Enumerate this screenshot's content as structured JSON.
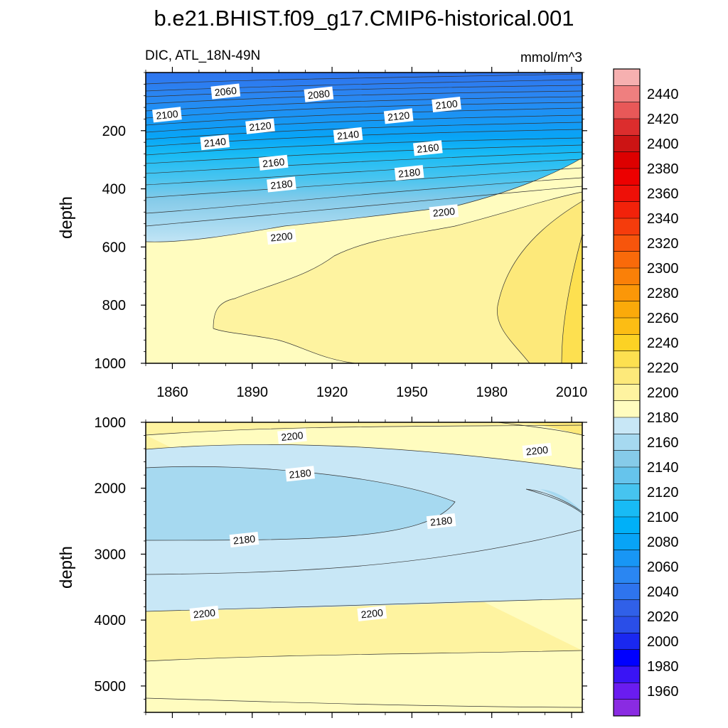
{
  "chart_data": {
    "type": "contour",
    "title": "b.e21.BHIST.f09_g17.CMIP6-historical.001",
    "variable_label": "DIC, ATL_18N-49N",
    "units": "mmol/m^3",
    "top_panel": {
      "ylabel": "depth",
      "ylim": [
        0,
        1000
      ],
      "y_inverted": true,
      "yticks": [
        "200",
        "400",
        "600",
        "800",
        "1000"
      ],
      "xlim": [
        1850,
        2014
      ],
      "xticks": [
        "1860",
        "1890",
        "1920",
        "1950",
        "1980",
        "2010"
      ],
      "contour_labels": [
        {
          "text": "2060",
          "year": 1880,
          "depth": 65
        },
        {
          "text": "2080",
          "year": 1915,
          "depth": 75
        },
        {
          "text": "2100",
          "year": 1858,
          "depth": 145
        },
        {
          "text": "2100",
          "year": 1963,
          "depth": 110
        },
        {
          "text": "2120",
          "year": 1893,
          "depth": 185
        },
        {
          "text": "2120",
          "year": 1945,
          "depth": 150
        },
        {
          "text": "2140",
          "year": 1876,
          "depth": 240
        },
        {
          "text": "2140",
          "year": 1926,
          "depth": 215
        },
        {
          "text": "2160",
          "year": 1898,
          "depth": 310
        },
        {
          "text": "2160",
          "year": 1956,
          "depth": 260
        },
        {
          "text": "2180",
          "year": 1901,
          "depth": 385
        },
        {
          "text": "2180",
          "year": 1949,
          "depth": 345
        },
        {
          "text": "2200",
          "year": 1901,
          "depth": 565
        },
        {
          "text": "2200",
          "year": 1962,
          "depth": 480
        }
      ]
    },
    "bottom_panel": {
      "ylabel": "depth",
      "ylim": [
        1000,
        5400
      ],
      "y_inverted": true,
      "yticks": [
        "1000",
        "2000",
        "3000",
        "4000",
        "5000"
      ],
      "xlim": [
        1850,
        2014
      ],
      "contour_labels": [
        {
          "text": "2200",
          "year": 1905,
          "depth": 1210
        },
        {
          "text": "2200",
          "year": 1997,
          "depth": 1430
        },
        {
          "text": "2180",
          "year": 1908,
          "depth": 1780
        },
        {
          "text": "2180",
          "year": 1961,
          "depth": 2500
        },
        {
          "text": "2180",
          "year": 1887,
          "depth": 2780
        },
        {
          "text": "2200",
          "year": 1872,
          "depth": 3900
        },
        {
          "text": "2200",
          "year": 1935,
          "depth": 3900
        }
      ]
    },
    "colorbar": {
      "levels": [
        "1960",
        "1980",
        "2000",
        "2020",
        "2040",
        "2060",
        "2080",
        "2100",
        "2120",
        "2140",
        "2160",
        "2180",
        "2200",
        "2220",
        "2240",
        "2260",
        "2280",
        "2300",
        "2320",
        "2340",
        "2360",
        "2380",
        "2400",
        "2420",
        "2440"
      ],
      "colors": [
        "#8a2be2",
        "#6a1cf0",
        "#3a14f5",
        "#0000ff",
        "#1a28f0",
        "#2a4ee8",
        "#3060e8",
        "#2e74ee",
        "#2a86f2",
        "#1896f5",
        "#08a4f6",
        "#00b0f8",
        "#18bbf5",
        "#46c4f0",
        "#66c4ec",
        "#86cbe9",
        "#a6d9f0",
        "#c8e7f6",
        "#fffcbf",
        "#fef3a0",
        "#fde97a",
        "#fde050",
        "#fcd224",
        "#fcbd14",
        "#fbaa0a",
        "#fb9708",
        "#fa8008",
        "#f96a0a",
        "#f7550c",
        "#f53c0c",
        "#f2220a",
        "#ee1008",
        "#ec0000",
        "#dd0000",
        "#cc1414",
        "#dc2d2d",
        "#e85858",
        "#ef7f7f",
        "#f6b0b0"
      ]
    }
  }
}
